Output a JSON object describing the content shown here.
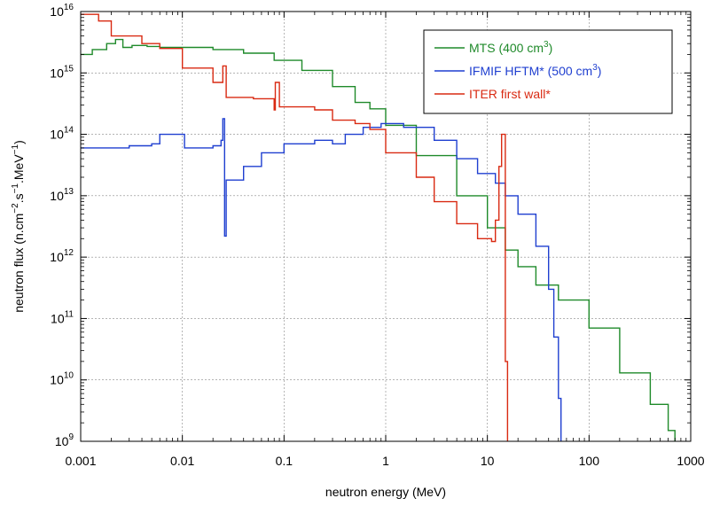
{
  "chart_data": {
    "type": "line",
    "xscale": "log",
    "yscale": "log",
    "xlim": [
      0.001,
      1000
    ],
    "ylim": [
      1000000000.0,
      1e+16
    ],
    "grid": true,
    "legend_position": "top-right",
    "xlabel": "neutron energy (MeV)",
    "ylabel": {
      "parts": [
        "neutron flux (n.cm",
        "−2",
        ".s",
        "−1",
        ".MeV",
        "−1",
        ")"
      ]
    },
    "x_ticks": [
      {
        "value": 0.001,
        "label": "0.001"
      },
      {
        "value": 0.01,
        "label": "0.01"
      },
      {
        "value": 0.1,
        "label": "0.1"
      },
      {
        "value": 1,
        "label": "1"
      },
      {
        "value": 10,
        "label": "10"
      },
      {
        "value": 100,
        "label": "100"
      },
      {
        "value": 1000,
        "label": "1000"
      }
    ],
    "y_ticks": [
      {
        "value": 1000000000.0,
        "base": "10",
        "exp": "9"
      },
      {
        "value": 10000000000.0,
        "base": "10",
        "exp": "10"
      },
      {
        "value": 100000000000.0,
        "base": "10",
        "exp": "11"
      },
      {
        "value": 1000000000000.0,
        "base": "10",
        "exp": "12"
      },
      {
        "value": 10000000000000.0,
        "base": "10",
        "exp": "13"
      },
      {
        "value": 100000000000000.0,
        "base": "10",
        "exp": "14"
      },
      {
        "value": 1000000000000000.0,
        "base": "10",
        "exp": "15"
      },
      {
        "value": 1e+16,
        "base": "10",
        "exp": "16"
      }
    ],
    "series": [
      {
        "name": "MTS (400 cm3)",
        "legend_parts": [
          "MTS (400 cm",
          "3",
          ")"
        ],
        "color": "#1f8a2a",
        "points": [
          [
            0.001,
            2000000000000000.0
          ],
          [
            0.0013,
            2400000000000000.0
          ],
          [
            0.0018,
            3000000000000000.0
          ],
          [
            0.0022,
            3500000000000000.0
          ],
          [
            0.0026,
            2600000000000000.0
          ],
          [
            0.0032,
            2800000000000000.0
          ],
          [
            0.0045,
            2700000000000000.0
          ],
          [
            0.006,
            2600000000000000.0
          ],
          [
            0.01,
            2600000000000000.0
          ],
          [
            0.02,
            2400000000000000.0
          ],
          [
            0.04,
            2100000000000000.0
          ],
          [
            0.08,
            1600000000000000.0
          ],
          [
            0.15,
            1100000000000000.0
          ],
          [
            0.3,
            600000000000000.0
          ],
          [
            0.5,
            330000000000000.0
          ],
          [
            0.7,
            260000000000000.0
          ],
          [
            1,
            140000000000000.0
          ],
          [
            2,
            45000000000000.0
          ],
          [
            5,
            10000000000000.0
          ],
          [
            10,
            3000000000000.0
          ],
          [
            15,
            1300000000000.0
          ],
          [
            20,
            700000000000.0
          ],
          [
            30,
            350000000000.0
          ],
          [
            50,
            200000000000.0
          ],
          [
            100,
            70000000000.0
          ],
          [
            200,
            13000000000.0
          ],
          [
            400,
            4000000000.0
          ],
          [
            600,
            1500000000.0
          ],
          [
            700,
            1000000000.0
          ]
        ]
      },
      {
        "name": "IFMIF HFTM* (500 cm3)",
        "legend_parts": [
          "IFMIF HFTM* (500 cm",
          "3",
          ")"
        ],
        "color": "#1f3fd0",
        "points": [
          [
            0.001,
            60000000000000.0
          ],
          [
            0.003,
            65000000000000.0
          ],
          [
            0.005,
            70000000000000.0
          ],
          [
            0.006,
            100000000000000.0
          ],
          [
            0.0095,
            100000000000000.0
          ],
          [
            0.0105,
            60000000000000.0
          ],
          [
            0.02,
            65000000000000.0
          ],
          [
            0.024,
            80000000000000.0
          ],
          [
            0.025,
            180000000000000.0
          ],
          [
            0.026,
            2200000000000.0
          ],
          [
            0.027,
            18000000000000.0
          ],
          [
            0.04,
            30000000000000.0
          ],
          [
            0.06,
            50000000000000.0
          ],
          [
            0.1,
            70000000000000.0
          ],
          [
            0.2,
            80000000000000.0
          ],
          [
            0.3,
            70000000000000.0
          ],
          [
            0.4,
            100000000000000.0
          ],
          [
            0.6,
            130000000000000.0
          ],
          [
            0.9,
            150000000000000.0
          ],
          [
            1.5,
            130000000000000.0
          ],
          [
            3,
            80000000000000.0
          ],
          [
            5,
            40000000000000.0
          ],
          [
            8,
            23000000000000.0
          ],
          [
            12,
            16000000000000.0
          ],
          [
            15,
            10000000000000.0
          ],
          [
            20,
            5000000000000.0
          ],
          [
            30,
            1500000000000.0
          ],
          [
            40,
            300000000000.0
          ],
          [
            45,
            50000000000.0
          ],
          [
            50,
            5000000000.0
          ],
          [
            53,
            1000000000.0
          ]
        ]
      },
      {
        "name": "ITER first wall*",
        "legend_parts": [
          "ITER first wall*"
        ],
        "color": "#d92a12",
        "points": [
          [
            0.001,
            9000000000000000.0
          ],
          [
            0.0015,
            7000000000000000.0
          ],
          [
            0.002,
            4000000000000000.0
          ],
          [
            0.004,
            3000000000000000.0
          ],
          [
            0.006,
            2500000000000000.0
          ],
          [
            0.01,
            1200000000000000.0
          ],
          [
            0.02,
            700000000000000.0
          ],
          [
            0.025,
            1300000000000000.0
          ],
          [
            0.027,
            400000000000000.0
          ],
          [
            0.05,
            380000000000000.0
          ],
          [
            0.08,
            250000000000000.0
          ],
          [
            0.082,
            700000000000000.0
          ],
          [
            0.09,
            280000000000000.0
          ],
          [
            0.2,
            250000000000000.0
          ],
          [
            0.3,
            170000000000000.0
          ],
          [
            0.5,
            150000000000000.0
          ],
          [
            0.7,
            120000000000000.0
          ],
          [
            1,
            50000000000000.0
          ],
          [
            2,
            20000000000000.0
          ],
          [
            3,
            8000000000000.0
          ],
          [
            5,
            3500000000000.0
          ],
          [
            8,
            2000000000000.0
          ],
          [
            11,
            1800000000000.0
          ],
          [
            12,
            4000000000000.0
          ],
          [
            13,
            30000000000000.0
          ],
          [
            13.8,
            100000000000000.0
          ],
          [
            14.6,
            100000000000000.0
          ],
          [
            15,
            20000000000.0
          ],
          [
            15.8,
            1000000000.0
          ]
        ]
      }
    ]
  }
}
